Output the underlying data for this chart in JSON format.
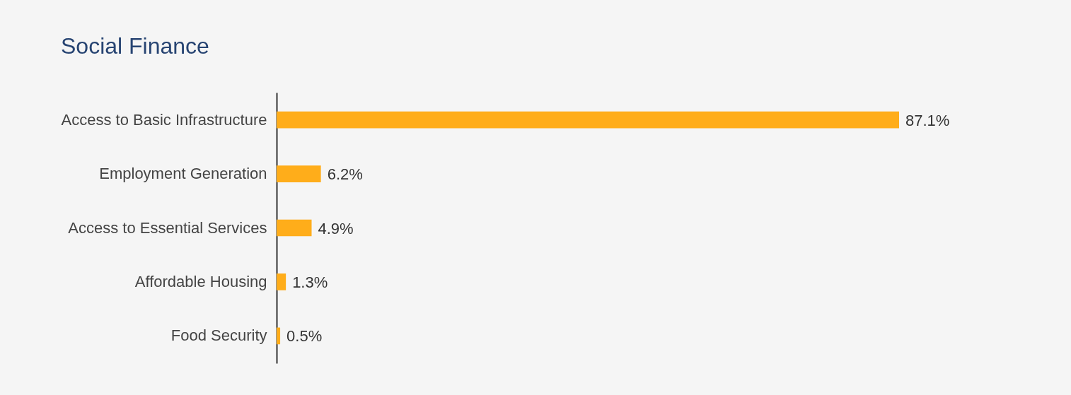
{
  "chart_data": {
    "type": "bar",
    "orientation": "horizontal",
    "title": "Social Finance",
    "categories": [
      "Access to Basic Infrastructure",
      "Employment Generation",
      "Access to Essential Services",
      "Affordable Housing",
      "Food Security"
    ],
    "values": [
      87.1,
      6.2,
      4.9,
      1.3,
      0.5
    ],
    "value_labels": [
      "87.1%",
      "6.2%",
      "4.9%",
      "1.3%",
      "0.5%"
    ],
    "color": "#ffad1a",
    "tick_labels": "y"
  }
}
